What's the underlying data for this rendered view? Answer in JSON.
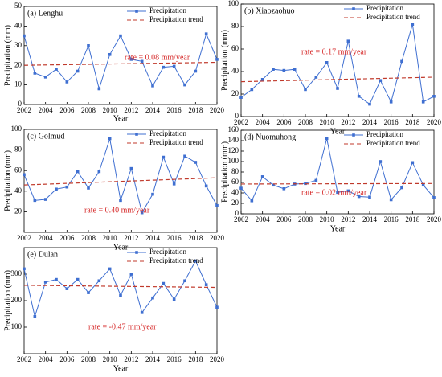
{
  "chart_data": [
    {
      "type": "line",
      "title": "(a) Lenghu",
      "xlabel": "Year",
      "ylabel": "Precipitation (mm)",
      "annotation": "rate = 0.08 mm/year",
      "xlim": [
        2002,
        2020
      ],
      "xticks": [
        2002,
        2004,
        2006,
        2008,
        2010,
        2012,
        2014,
        2016,
        2018,
        2020
      ],
      "ylim": [
        0,
        50
      ],
      "yticks": [
        0,
        10,
        20,
        30,
        40,
        50
      ],
      "legend": "upper right",
      "x": [
        2002,
        2003,
        2004,
        2005,
        2006,
        2007,
        2008,
        2009,
        2010,
        2011,
        2012,
        2013,
        2014,
        2015,
        2016,
        2017,
        2018,
        2019,
        2020
      ],
      "series": [
        {
          "name": "Precipitation",
          "color": "#3f6fd1",
          "values": [
            35,
            16,
            14,
            18,
            11.5,
            17,
            30,
            8,
            25.5,
            35,
            23,
            22,
            9.5,
            19,
            19.5,
            10,
            17,
            36,
            23
          ]
        },
        {
          "name": "Precipitation trend",
          "color": "#c0392b",
          "dashed": true,
          "x": [
            2002,
            2020
          ],
          "values": [
            20,
            21.5
          ]
        }
      ]
    },
    {
      "type": "line",
      "title": "(b) Xiaozaohuo",
      "xlabel": "Year",
      "ylabel": "Precipitation (mm)",
      "annotation": "rate = 0.17 mm/year",
      "xlim": [
        2002,
        2020
      ],
      "xticks": [
        2002,
        2004,
        2006,
        2008,
        2010,
        2012,
        2014,
        2016,
        2018,
        2020
      ],
      "ylim": [
        0,
        100
      ],
      "yticks": [
        0,
        20,
        40,
        60,
        80,
        100
      ],
      "legend": "upper right",
      "x": [
        2002,
        2003,
        2004,
        2005,
        2006,
        2007,
        2008,
        2009,
        2010,
        2011,
        2012,
        2013,
        2014,
        2015,
        2016,
        2017,
        2018,
        2019,
        2020
      ],
      "series": [
        {
          "name": "Precipitation",
          "color": "#3f6fd1",
          "values": [
            17,
            24,
            33,
            42,
            41,
            42,
            24,
            35,
            48,
            25,
            67,
            18,
            11,
            32,
            13,
            49,
            82,
            13,
            18
          ]
        },
        {
          "name": "Precipitation trend",
          "color": "#c0392b",
          "dashed": true,
          "x": [
            2002,
            2020
          ],
          "values": [
            31,
            35
          ]
        }
      ]
    },
    {
      "type": "line",
      "title": "(c) Golmud",
      "xlabel": "Year",
      "ylabel": "Precipitation (mm)",
      "annotation": "rate = 0.40 mm/year",
      "xlim": [
        2002,
        2020
      ],
      "xticks": [
        2002,
        2004,
        2006,
        2008,
        2010,
        2012,
        2014,
        2016,
        2018,
        2020
      ],
      "ylim": [
        0,
        100
      ],
      "yticks": [
        20,
        40,
        60,
        80,
        100
      ],
      "legend": "upper right",
      "x": [
        2002,
        2003,
        2004,
        2005,
        2006,
        2007,
        2008,
        2009,
        2010,
        2011,
        2012,
        2013,
        2014,
        2015,
        2016,
        2017,
        2018,
        2019,
        2020
      ],
      "series": [
        {
          "name": "Precipitation",
          "color": "#3f6fd1",
          "values": [
            56,
            31,
            32,
            42,
            44,
            59,
            43,
            59,
            91,
            31,
            62,
            19,
            37,
            73,
            47,
            74,
            68,
            45,
            26
          ]
        },
        {
          "name": "Precipitation trend",
          "color": "#c0392b",
          "dashed": true,
          "x": [
            2002,
            2020
          ],
          "values": [
            46,
            53
          ]
        }
      ]
    },
    {
      "type": "line",
      "title": "(d) Nuomuhong",
      "xlabel": "Year",
      "ylabel": "Precipitation (mm)",
      "annotation": "rate = 0.02 mm/year",
      "xlim": [
        2002,
        2020
      ],
      "xticks": [
        2002,
        2004,
        2006,
        2008,
        2010,
        2012,
        2014,
        2016,
        2018,
        2020
      ],
      "ylim": [
        0,
        160
      ],
      "yticks": [
        0,
        20,
        40,
        60,
        80,
        100,
        120,
        140,
        160
      ],
      "legend": "upper right",
      "x": [
        2002,
        2003,
        2004,
        2005,
        2006,
        2007,
        2008,
        2009,
        2010,
        2011,
        2012,
        2013,
        2014,
        2015,
        2016,
        2017,
        2018,
        2019,
        2020
      ],
      "series": [
        {
          "name": "Precipitation",
          "color": "#3f6fd1",
          "values": [
            49,
            25,
            71,
            55,
            48,
            57,
            58,
            64,
            144,
            41,
            44,
            33,
            32,
            100,
            27,
            50,
            98,
            55,
            31
          ]
        },
        {
          "name": "Precipitation trend",
          "color": "#c0392b",
          "dashed": true,
          "x": [
            2002,
            2020
          ],
          "values": [
            57,
            58
          ]
        }
      ]
    },
    {
      "type": "line",
      "title": "(e) Dulan",
      "xlabel": "Year",
      "ylabel": "Precipitation (mm)",
      "annotation": "rate = -0.47 mm/year",
      "xlim": [
        2002,
        2020
      ],
      "xticks": [
        2002,
        2004,
        2006,
        2008,
        2010,
        2012,
        2014,
        2016,
        2018,
        2020
      ],
      "ylim": [
        0,
        400
      ],
      "yticks": [
        100,
        200,
        300
      ],
      "legend": "upper right",
      "x": [
        2002,
        2003,
        2004,
        2005,
        2006,
        2007,
        2008,
        2009,
        2010,
        2011,
        2012,
        2013,
        2014,
        2015,
        2016,
        2017,
        2018,
        2019,
        2020
      ],
      "series": [
        {
          "name": "Precipitation",
          "color": "#3f6fd1",
          "values": [
            320,
            140,
            270,
            280,
            245,
            280,
            230,
            275,
            320,
            220,
            300,
            155,
            210,
            265,
            205,
            275,
            350,
            260,
            175
          ]
        },
        {
          "name": "Precipitation trend",
          "color": "#c0392b",
          "dashed": true,
          "x": [
            2002,
            2020
          ],
          "values": [
            258,
            250
          ]
        }
      ]
    }
  ]
}
